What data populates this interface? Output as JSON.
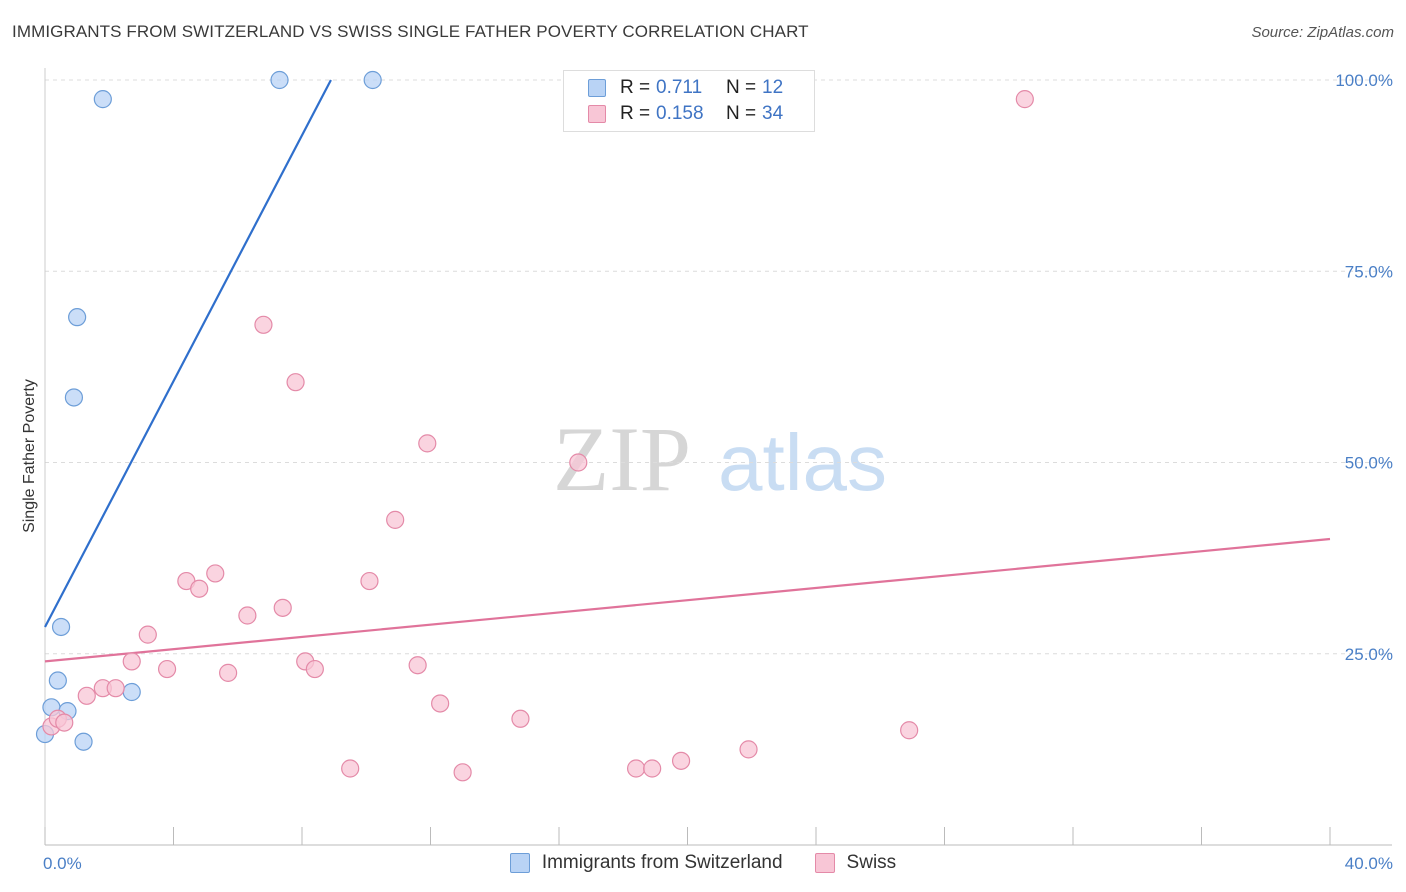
{
  "header": {
    "title": "IMMIGRANTS FROM SWITZERLAND VS SWISS SINGLE FATHER POVERTY CORRELATION CHART",
    "source": "Source: ZipAtlas.com"
  },
  "watermark": {
    "zip": "ZIP",
    "atlas": "atlas"
  },
  "legend": {
    "rows": [
      {
        "r_label": "R =",
        "r_value": "0.711",
        "n_label": "N =",
        "n_value": "12",
        "fill": "#b9d3f5",
        "stroke": "#6d9ed8"
      },
      {
        "r_label": "R =",
        "r_value": "0.158",
        "n_label": "N =",
        "n_value": "34",
        "fill": "#f8c6d6",
        "stroke": "#e48aa8"
      }
    ]
  },
  "chart_data": {
    "type": "scatter",
    "title": "IMMIGRANTS FROM SWITZERLAND VS SWISS SINGLE FATHER POVERTY CORRELATION CHART",
    "xlabel": "",
    "ylabel": "Single Father Poverty",
    "xlim": [
      0,
      40
    ],
    "ylim": [
      0,
      100
    ],
    "x_tick_labels": [
      "0.0%",
      "40.0%"
    ],
    "y_ticks": [
      25,
      50,
      75,
      100
    ],
    "y_tick_labels": [
      "25.0%",
      "50.0%",
      "75.0%",
      "100.0%"
    ],
    "grid": "horizontal dashed",
    "legend_position": "top-center",
    "series": [
      {
        "name": "Immigrants from Switzerland",
        "color": "#6d9ed8",
        "fill": "#b9d3f5",
        "x": [
          0.0,
          0.2,
          0.4,
          0.5,
          0.7,
          0.9,
          1.0,
          1.2,
          1.8,
          2.7,
          7.3,
          10.2
        ],
        "y": [
          14.5,
          18.0,
          21.5,
          28.5,
          17.5,
          58.5,
          69.0,
          13.5,
          97.5,
          20.0,
          100.0,
          100.0
        ],
        "trend": {
          "x": [
            0.0,
            8.9
          ],
          "y": [
            28.5,
            100.0
          ],
          "color": "#2f6fcc"
        }
      },
      {
        "name": "Swiss",
        "color": "#e48aa8",
        "fill": "#f8c6d6",
        "x": [
          0.2,
          0.4,
          0.6,
          1.3,
          1.8,
          2.2,
          2.7,
          3.2,
          3.8,
          4.4,
          4.8,
          5.3,
          5.7,
          6.3,
          6.8,
          7.4,
          7.8,
          8.1,
          8.4,
          9.5,
          10.1,
          10.9,
          11.6,
          11.9,
          12.3,
          13.0,
          14.8,
          16.6,
          18.4,
          18.9,
          19.8,
          21.9,
          26.9,
          30.5
        ],
        "y": [
          15.5,
          16.5,
          16.0,
          19.5,
          20.5,
          20.5,
          24.0,
          27.5,
          23.0,
          34.5,
          33.5,
          35.5,
          22.5,
          30.0,
          68.0,
          31.0,
          60.5,
          24.0,
          23.0,
          10.0,
          34.5,
          42.5,
          23.5,
          52.5,
          18.5,
          9.5,
          16.5,
          50.0,
          10.0,
          10.0,
          11.0,
          12.5,
          15.0,
          97.5
        ],
        "trend": {
          "x": [
            0.0,
            40.0
          ],
          "y": [
            24.0,
            40.0
          ],
          "color": "#e0739a"
        }
      }
    ]
  }
}
